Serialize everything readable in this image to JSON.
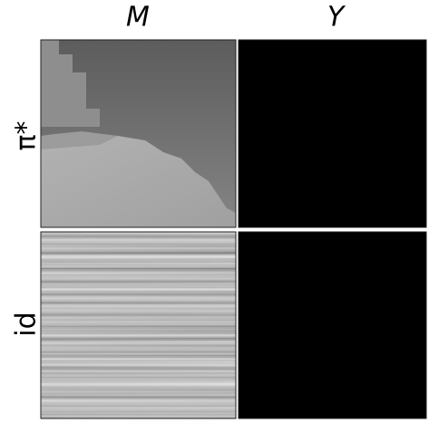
{
  "columns": [
    {
      "label": "M"
    },
    {
      "label": "Y"
    }
  ],
  "rows": [
    {
      "label": "π*"
    },
    {
      "label": "id"
    }
  ]
}
